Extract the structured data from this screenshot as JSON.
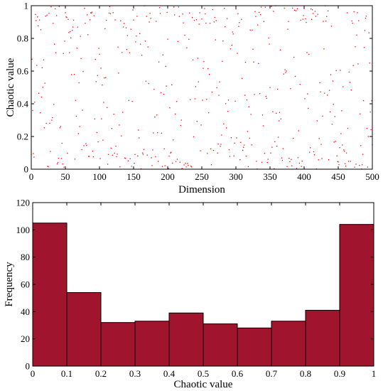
{
  "chart_data": [
    {
      "type": "scatter",
      "title": "",
      "xlabel": "Dimension",
      "ylabel": "Chaotic value",
      "xlim": [
        0,
        500
      ],
      "ylim": [
        0,
        1
      ],
      "xticks": [
        0,
        50,
        100,
        150,
        200,
        250,
        300,
        350,
        400,
        450,
        500
      ],
      "yticks": [
        0,
        0.2,
        0.4,
        0.6,
        0.8,
        1
      ],
      "xtick_labels": [
        "0",
        "50",
        "100",
        "150",
        "200",
        "250",
        "300",
        "350",
        "400",
        "450",
        "500"
      ],
      "ytick_labels": [
        "0",
        "0.2",
        "0.4",
        "0.6",
        "0.8",
        "1"
      ],
      "marker_color": "#ff0000",
      "point_count": 500,
      "distribution_note_x": "x = 1..500",
      "y_histogram_counts": [
        105,
        54,
        32,
        33,
        39,
        31,
        28,
        33,
        41,
        104
      ]
    },
    {
      "type": "bar",
      "title": "",
      "xlabel": "Chaotic value",
      "ylabel": "Frequency",
      "xlim": [
        0,
        1
      ],
      "ylim": [
        0,
        120
      ],
      "bin_edges": [
        0,
        0.1,
        0.2,
        0.3,
        0.4,
        0.5,
        0.6,
        0.7,
        0.8,
        0.9,
        1
      ],
      "values": [
        105,
        54,
        32,
        33,
        39,
        31,
        28,
        33,
        41,
        104
      ],
      "xticks": [
        0,
        0.1,
        0.2,
        0.3,
        0.4,
        0.5,
        0.6,
        0.7,
        0.8,
        0.9,
        1
      ],
      "yticks": [
        0,
        20,
        40,
        60,
        80,
        100,
        120
      ],
      "xtick_labels": [
        "0",
        "0.1",
        "0.2",
        "0.3",
        "0.4",
        "0.5",
        "0.6",
        "0.7",
        "0.8",
        "0.9",
        "1"
      ],
      "ytick_labels": [
        "0",
        "20",
        "40",
        "60",
        "80",
        "100",
        "120"
      ],
      "bar_color": "#a0142e"
    }
  ]
}
